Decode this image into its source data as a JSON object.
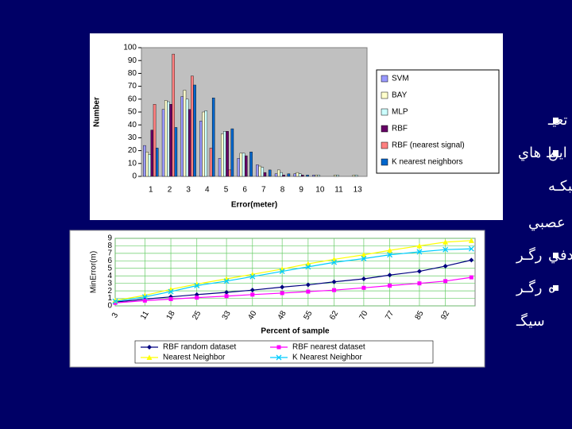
{
  "slide_text": [
    "تعيـ",
    "اين",
    "ط هاي",
    "شبكـه",
    "عصبي",
    "رگـر",
    "ادفي",
    "رگـر",
    "ه",
    "سيگـ"
  ],
  "chart_data": [
    {
      "type": "bar",
      "y_label": "Number",
      "x_label": "Error(meter)",
      "categories": [
        "1",
        "2",
        "3",
        "4",
        "5",
        "6",
        "7",
        "8",
        "9",
        "10",
        "11",
        "13"
      ],
      "series": [
        {
          "name": "SVM",
          "color": "#9999ff",
          "values": [
            24,
            52,
            62,
            43,
            14,
            14,
            9,
            2,
            2,
            1,
            0,
            0
          ]
        },
        {
          "name": "BAY",
          "color": "#ffffcc",
          "values": [
            19,
            59,
            67,
            50,
            33,
            18,
            8,
            5,
            3,
            1,
            1,
            1
          ]
        },
        {
          "name": "MLP",
          "color": "#ccffff",
          "values": [
            17,
            58,
            60,
            51,
            35,
            18,
            7,
            3,
            2,
            1,
            1,
            1
          ]
        },
        {
          "name": "RBF",
          "color": "#660066",
          "values": [
            36,
            56,
            52,
            0,
            35,
            16,
            3,
            1,
            1,
            0,
            0,
            0
          ]
        },
        {
          "name": "RBF (nearest signal)",
          "color": "#ff8080",
          "values": [
            56,
            95,
            78,
            22,
            5,
            0,
            0,
            0,
            0,
            0,
            0,
            0
          ]
        },
        {
          "name": "K nearest neighbors",
          "color": "#0066cc",
          "values": [
            22,
            38,
            71,
            61,
            37,
            19,
            5,
            2,
            1,
            0,
            0,
            0
          ]
        }
      ],
      "ylim": [
        0,
        100
      ],
      "yticks": [
        0,
        10,
        20,
        30,
        40,
        50,
        60,
        70,
        80,
        90,
        100
      ]
    },
    {
      "type": "line",
      "y_label": "MinError(m)",
      "x_label": "Percent of sample",
      "x": [
        3,
        11,
        18,
        25,
        33,
        40,
        48,
        55,
        62,
        70,
        77,
        85,
        92,
        99
      ],
      "xlim": [
        3,
        100
      ],
      "xticks": [
        3,
        11,
        18,
        25,
        33,
        40,
        48,
        55,
        62,
        70,
        77,
        85,
        92
      ],
      "ylim": [
        0,
        9
      ],
      "yticks": [
        0,
        1,
        2,
        3,
        4,
        5,
        6,
        7,
        8,
        9
      ],
      "grid": true,
      "series": [
        {
          "name": "RBF random dataset",
          "color": "#000080",
          "marker": "diamond",
          "values": [
            0.5,
            0.9,
            1.2,
            1.5,
            1.8,
            2.1,
            2.5,
            2.8,
            3.2,
            3.6,
            4.1,
            4.6,
            5.3,
            6.1
          ]
        },
        {
          "name": "RBF nearest dataset",
          "color": "#ff00ff",
          "marker": "square",
          "values": [
            0.4,
            0.7,
            0.9,
            1.1,
            1.3,
            1.5,
            1.7,
            1.9,
            2.1,
            2.4,
            2.7,
            3.0,
            3.3,
            3.8
          ]
        },
        {
          "name": "Nearest Neighbor",
          "color": "#ffff00",
          "marker": "triangle",
          "values": [
            0.7,
            1.4,
            2.2,
            2.9,
            3.6,
            4.2,
            4.9,
            5.6,
            6.2,
            6.8,
            7.4,
            8.0,
            8.5,
            8.7
          ]
        },
        {
          "name": "K Nearest Neighbor",
          "color": "#00ccff",
          "marker": "x",
          "values": [
            0.6,
            1.2,
            1.9,
            2.7,
            3.3,
            3.9,
            4.6,
            5.2,
            5.8,
            6.3,
            6.8,
            7.2,
            7.5,
            7.6
          ]
        }
      ]
    }
  ]
}
